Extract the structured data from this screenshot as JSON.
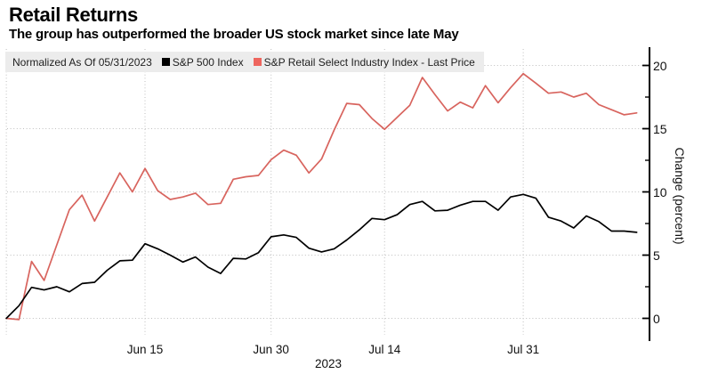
{
  "header": {
    "title": "Retail Returns",
    "subtitle": "The group has outperformed the broader US stock market since late May"
  },
  "legend": {
    "note": "Normalized As Of 05/31/2023",
    "items": [
      {
        "label": "S&P 500 Index",
        "color": "#000000"
      },
      {
        "label": "S&P Retail Select Industry Index - Last Price",
        "color": "#ee655e"
      }
    ]
  },
  "colors": {
    "background": "#ffffff",
    "legend_bg": "#ececec",
    "grid": "#bfbfbf",
    "axis": "#000000",
    "sp500_line": "#000000",
    "retail_line": "#d8645e",
    "text": "#101010"
  },
  "chart_data": {
    "type": "line",
    "title": "Retail Returns",
    "subtitle": "The group has outperformed the broader US stock market since late May",
    "note": "Normalized As Of 05/31/2023",
    "ylabel": "Change (percent)",
    "year_label": "2023",
    "grid": "dotted",
    "legend_position": "top",
    "x_unit": "trading days since 05/31/2023",
    "dates": [
      "05/31",
      "06/01",
      "06/02",
      "06/05",
      "06/06",
      "06/07",
      "06/08",
      "06/09",
      "06/12",
      "06/13",
      "06/14",
      "06/15",
      "06/16",
      "06/20",
      "06/21",
      "06/22",
      "06/23",
      "06/26",
      "06/27",
      "06/28",
      "06/29",
      "06/30",
      "07/03",
      "07/05",
      "07/06",
      "07/07",
      "07/10",
      "07/11",
      "07/12",
      "07/13",
      "07/14",
      "07/17",
      "07/18",
      "07/19",
      "07/20",
      "07/21",
      "07/24",
      "07/25",
      "07/26",
      "07/27",
      "07/28",
      "07/31",
      "08/01",
      "08/02",
      "08/03",
      "08/04",
      "08/07",
      "08/08",
      "08/09",
      "08/10",
      "08/11"
    ],
    "x_ticks": [
      {
        "label": "Jun 15",
        "index": 11
      },
      {
        "label": "Jun 30",
        "index": 21
      },
      {
        "label": "Jul 14",
        "index": 30
      },
      {
        "label": "Jul 31",
        "index": 41
      }
    ],
    "extra_vertical_gridline_indices": [
      0
    ],
    "y_axis": {
      "min": 0,
      "max": 20,
      "major_ticks": [
        0,
        5,
        10,
        15,
        20
      ],
      "minor_ticks": [
        2.5,
        7.5,
        12.5,
        17.5
      ],
      "side": "right"
    },
    "series": [
      {
        "name": "S&P 500 Index",
        "color": "#000000",
        "values": [
          0.0,
          1.0,
          2.45,
          2.25,
          2.5,
          2.1,
          2.75,
          2.85,
          3.8,
          4.55,
          4.6,
          5.9,
          5.5,
          5.0,
          4.45,
          4.85,
          4.05,
          3.55,
          4.75,
          4.7,
          5.2,
          6.45,
          6.6,
          6.4,
          5.55,
          5.25,
          5.5,
          6.2,
          7.0,
          7.9,
          7.8,
          8.2,
          9.0,
          9.25,
          8.5,
          8.55,
          8.95,
          9.25,
          9.25,
          8.55,
          9.6,
          9.8,
          9.5,
          8.0,
          7.7,
          7.15,
          8.1,
          7.65,
          6.9,
          6.9,
          6.8
        ]
      },
      {
        "name": "S&P Retail Select Industry Index - Last Price",
        "color": "#d8645e",
        "values": [
          0.0,
          -0.1,
          4.5,
          3.0,
          5.8,
          8.6,
          9.75,
          7.7,
          9.6,
          11.5,
          10.0,
          11.85,
          10.1,
          9.4,
          9.6,
          9.9,
          9.0,
          9.1,
          11.0,
          11.2,
          11.3,
          12.55,
          13.3,
          12.9,
          11.5,
          12.6,
          14.9,
          17.0,
          16.9,
          15.8,
          14.95,
          15.9,
          16.85,
          19.05,
          17.7,
          16.4,
          17.1,
          16.65,
          18.4,
          17.05,
          18.25,
          19.35,
          18.6,
          17.8,
          17.9,
          17.5,
          17.8,
          16.9,
          16.5,
          16.1,
          16.25
        ]
      }
    ]
  }
}
